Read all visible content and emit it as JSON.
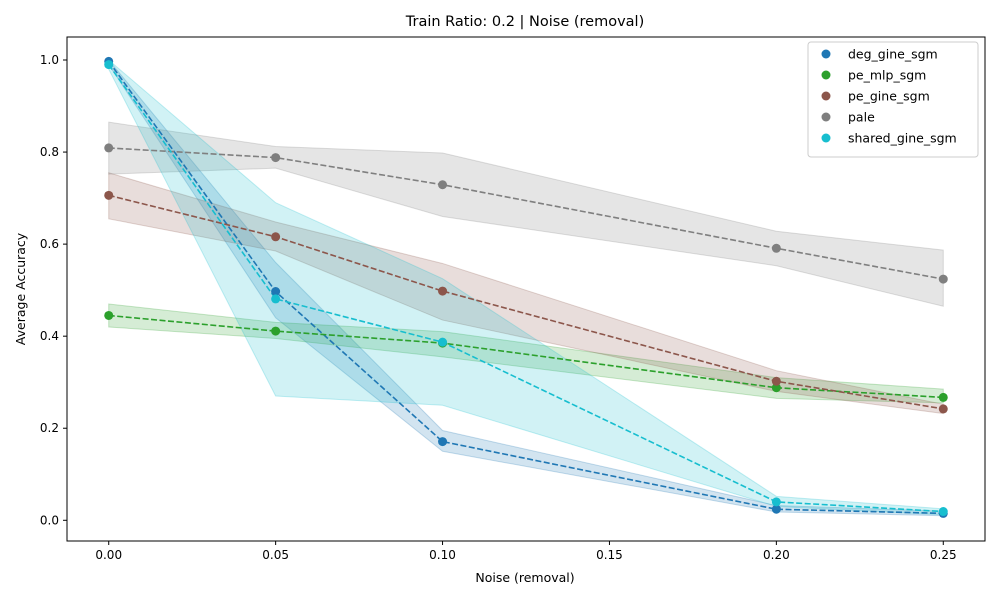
{
  "chart_data": {
    "type": "line",
    "title": "Train Ratio: 0.2 | Noise (removal)",
    "xlabel": "Noise (removal)",
    "ylabel": "Average Accuracy",
    "x": [
      0.0,
      0.05,
      0.1,
      0.2,
      0.25
    ],
    "xlim": [
      -0.0125,
      0.2625
    ],
    "ylim": [
      -0.045,
      1.05
    ],
    "xticks": [
      0.0,
      0.05,
      0.1,
      0.15,
      0.2,
      0.25
    ],
    "xtick_labels": [
      "0.00",
      "0.05",
      "0.10",
      "0.15",
      "0.20",
      "0.25"
    ],
    "yticks": [
      0.0,
      0.2,
      0.4,
      0.6,
      0.8,
      1.0
    ],
    "ytick_labels": [
      "0.0",
      "0.2",
      "0.4",
      "0.6",
      "0.8",
      "1.0"
    ],
    "grid": false,
    "legend_position": "top-right",
    "series": [
      {
        "name": "deg_gine_sgm",
        "color": "#1f77b4",
        "values": [
          0.997,
          0.497,
          0.171,
          0.024,
          0.015
        ],
        "lower": [
          0.99,
          0.44,
          0.15,
          0.018,
          0.01
        ],
        "upper": [
          1.0,
          0.56,
          0.195,
          0.032,
          0.02
        ]
      },
      {
        "name": "pe_mlp_sgm",
        "color": "#2ca02c",
        "values": [
          0.445,
          0.411,
          0.385,
          0.288,
          0.267
        ],
        "lower": [
          0.42,
          0.395,
          0.355,
          0.265,
          0.255
        ],
        "upper": [
          0.47,
          0.43,
          0.41,
          0.31,
          0.285
        ]
      },
      {
        "name": "pe_gine_sgm",
        "color": "#8c564b",
        "values": [
          0.706,
          0.616,
          0.498,
          0.302,
          0.242
        ],
        "lower": [
          0.655,
          0.585,
          0.435,
          0.28,
          0.232
        ],
        "upper": [
          0.755,
          0.648,
          0.558,
          0.325,
          0.252
        ]
      },
      {
        "name": "pale",
        "color": "#7f7f7f",
        "values": [
          0.809,
          0.788,
          0.729,
          0.591,
          0.524
        ],
        "lower": [
          0.752,
          0.765,
          0.66,
          0.553,
          0.465
        ],
        "upper": [
          0.865,
          0.812,
          0.798,
          0.628,
          0.587
        ]
      },
      {
        "name": "shared_gine_sgm",
        "color": "#17becf",
        "values": [
          0.99,
          0.481,
          0.387,
          0.04,
          0.019
        ],
        "lower": [
          0.98,
          0.27,
          0.25,
          0.03,
          0.012
        ],
        "upper": [
          1.0,
          0.69,
          0.525,
          0.052,
          0.025
        ]
      }
    ]
  }
}
